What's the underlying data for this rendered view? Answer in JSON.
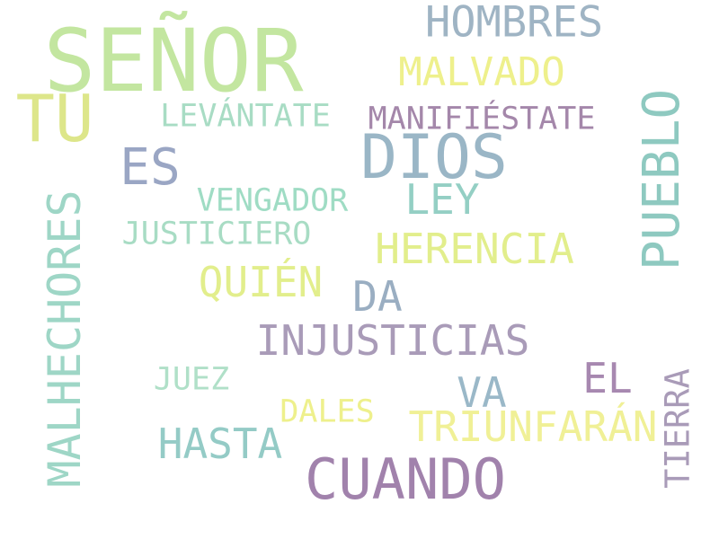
{
  "words": [
    {
      "id": "senor",
      "text": "SEÑOR",
      "color": "#c3e6a0"
    },
    {
      "id": "hombres",
      "text": "HOMBRES",
      "color": "#9fb4c4"
    },
    {
      "id": "malvado",
      "text": "MALVADO",
      "color": "#eef08c"
    },
    {
      "id": "tu",
      "text": "TU",
      "color": "#dde68a"
    },
    {
      "id": "levantate",
      "text": "LEVÁNTATE",
      "color": "#a8dcc4"
    },
    {
      "id": "manifiestate",
      "text": "MANIFIÉSTATE",
      "color": "#a487aa"
    },
    {
      "id": "pueblo",
      "text": "PUEBLO",
      "color": "#8ec9c0"
    },
    {
      "id": "dios",
      "text": "DIOS",
      "color": "#9ab6c6"
    },
    {
      "id": "es",
      "text": "ES",
      "color": "#9aa6c4"
    },
    {
      "id": "ley",
      "text": "LEY",
      "color": "#94cfc4"
    },
    {
      "id": "vengador",
      "text": "VENGADOR",
      "color": "#9fdcc4"
    },
    {
      "id": "justiciero",
      "text": "JUSTICIERO",
      "color": "#a8dcc4"
    },
    {
      "id": "herencia",
      "text": "HERENCIA",
      "color": "#e2ee8c"
    },
    {
      "id": "malhechores",
      "text": "MALHECHORES",
      "color": "#9ed6c6"
    },
    {
      "id": "quien",
      "text": "QUIÉN",
      "color": "#e2ee8c"
    },
    {
      "id": "da",
      "text": "DA",
      "color": "#9aaec2"
    },
    {
      "id": "injusticias",
      "text": "INJUSTICIAS",
      "color": "#a99bb8"
    },
    {
      "id": "el",
      "text": "EL",
      "color": "#a788b0"
    },
    {
      "id": "juez",
      "text": "JUEZ",
      "color": "#b0e0c8"
    },
    {
      "id": "va",
      "text": "VA",
      "color": "#9ab8c8"
    },
    {
      "id": "tierra",
      "text": "TIERRA",
      "color": "#a99bb8"
    },
    {
      "id": "dales",
      "text": "DALES",
      "color": "#eef08c"
    },
    {
      "id": "triunfaran",
      "text": "TRIUNFARÁN",
      "color": "#f0f096"
    },
    {
      "id": "hasta",
      "text": "HASTA",
      "color": "#94cbc6"
    },
    {
      "id": "cuando",
      "text": "CUANDO",
      "color": "#a182ac"
    }
  ]
}
